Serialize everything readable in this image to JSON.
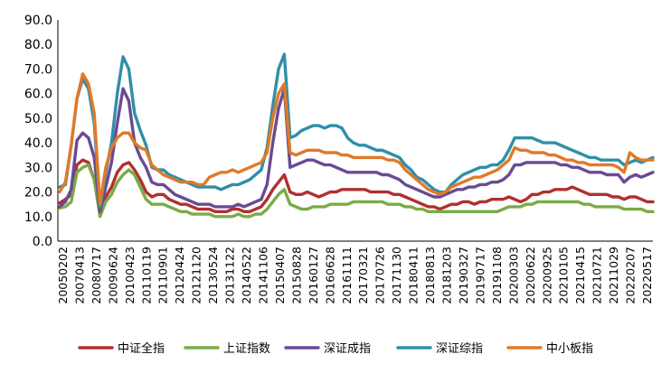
{
  "chart_data": {
    "type": "line",
    "title": "",
    "xlabel": "",
    "ylabel": "",
    "ylim": [
      0,
      90
    ],
    "yticks": [
      "0.0",
      "10.0",
      "20.0",
      "30.0",
      "40.0",
      "50.0",
      "60.0",
      "70.0",
      "80.0",
      "90.0"
    ],
    "xticks": [
      "20050202",
      "20070413",
      "20080717",
      "20090624",
      "20100423",
      "20110119",
      "20110901",
      "20120424",
      "20121120",
      "20130524",
      "20131122",
      "20140522",
      "20141106",
      "20150407",
      "20150828",
      "20160127",
      "20160628",
      "20161111",
      "20170321",
      "20170726",
      "20171130",
      "20180411",
      "20180813",
      "20181203",
      "20190327",
      "20190717",
      "20191108",
      "20200303",
      "20200622",
      "20200925",
      "20210105",
      "20210415",
      "20210721",
      "20211029",
      "20220207",
      "20220517"
    ],
    "grid": false,
    "legend": "bottom",
    "series": [
      {
        "name": "中证全指",
        "color": "#b03030",
        "values": [
          15.5,
          17,
          19,
          31,
          33,
          32,
          25,
          12,
          18,
          22,
          28,
          31,
          32,
          29,
          25,
          20,
          18,
          19,
          19,
          17,
          16,
          15,
          15,
          14,
          13,
          13,
          13,
          12,
          12,
          12,
          13,
          13,
          12,
          12,
          13,
          14,
          17,
          21,
          24,
          27,
          20,
          19,
          19,
          20,
          19,
          18,
          19,
          20,
          20,
          21,
          21,
          21,
          21,
          21,
          20,
          20,
          20,
          20,
          19,
          19,
          18,
          17,
          16,
          15,
          14,
          14,
          13,
          14,
          15,
          15,
          16,
          16,
          15,
          16,
          16,
          17,
          17,
          17,
          18,
          17,
          16,
          17,
          19,
          19,
          20,
          20,
          21,
          21,
          21,
          22,
          21,
          20,
          19,
          19,
          19,
          19,
          18,
          18,
          17,
          18,
          18,
          17,
          16,
          16
        ]
      },
      {
        "name": "上证指数",
        "color": "#7aab45",
        "values": [
          13.5,
          14,
          16,
          28,
          30,
          31,
          25,
          10,
          16,
          19,
          24,
          27,
          29,
          27,
          22,
          17,
          15,
          15,
          15,
          14,
          13,
          12,
          12,
          11,
          11,
          11,
          11,
          10,
          10,
          10,
          10,
          11,
          10,
          10,
          11,
          11,
          13,
          16,
          19,
          21,
          15,
          14,
          13,
          13,
          14,
          14,
          14,
          15,
          15,
          15,
          15,
          16,
          16,
          16,
          16,
          16,
          16,
          15,
          15,
          15,
          14,
          14,
          13,
          13,
          12,
          12,
          12,
          12,
          12,
          12,
          12,
          12,
          12,
          12,
          12,
          12,
          12,
          13,
          14,
          14,
          14,
          15,
          15,
          16,
          16,
          16,
          16,
          16,
          16,
          16,
          16,
          15,
          15,
          14,
          14,
          14,
          14,
          14,
          13,
          13,
          13,
          13,
          12,
          12
        ]
      },
      {
        "name": "深证成指",
        "color": "#6a4a93",
        "values": [
          14,
          16,
          21,
          41,
          44,
          42,
          34,
          12,
          22,
          32,
          48,
          62,
          57,
          40,
          34,
          30,
          24,
          23,
          23,
          21,
          19,
          18,
          17,
          16,
          15,
          15,
          15,
          14,
          14,
          14,
          14,
          15,
          14,
          15,
          16,
          17,
          23,
          40,
          54,
          62,
          30,
          31,
          32,
          33,
          33,
          32,
          31,
          31,
          30,
          29,
          28,
          28,
          28,
          28,
          28,
          28,
          27,
          27,
          26,
          25,
          23,
          22,
          21,
          20,
          19,
          18,
          18,
          19,
          20,
          21,
          21,
          22,
          22,
          23,
          23,
          24,
          24,
          25,
          27,
          31,
          31,
          32,
          32,
          32,
          32,
          32,
          32,
          31,
          31,
          30,
          30,
          29,
          28,
          28,
          28,
          27,
          27,
          27,
          24,
          26,
          27,
          26,
          27,
          28
        ]
      },
      {
        "name": "深证综指",
        "color": "#2f8fa8",
        "values": [
          22,
          23,
          39,
          58,
          66,
          62,
          48,
          14,
          28,
          40,
          60,
          75,
          70,
          52,
          45,
          39,
          30,
          29,
          29,
          27,
          26,
          25,
          24,
          23,
          22,
          22,
          22,
          22,
          21,
          22,
          23,
          23,
          24,
          25,
          27,
          29,
          38,
          55,
          70,
          76,
          42,
          43,
          45,
          46,
          47,
          47,
          46,
          47,
          47,
          46,
          42,
          40,
          39,
          39,
          38,
          37,
          37,
          36,
          35,
          34,
          31,
          29,
          26,
          25,
          23,
          21,
          20,
          20,
          23,
          25,
          27,
          28,
          29,
          30,
          30,
          31,
          31,
          33,
          37,
          42,
          42,
          42,
          42,
          41,
          40,
          40,
          40,
          39,
          38,
          37,
          36,
          35,
          34,
          34,
          33,
          33,
          33,
          33,
          31,
          32,
          33,
          32,
          33,
          34
        ]
      },
      {
        "name": "中小板指",
        "color": "#e07a28",
        "values": [
          20,
          24,
          39,
          58,
          68,
          64,
          52,
          15,
          30,
          38,
          42,
          44,
          44,
          40,
          38,
          37,
          31,
          29,
          27,
          26,
          25,
          24,
          24,
          24,
          23,
          23,
          26,
          27,
          28,
          28,
          29,
          28,
          29,
          30,
          31,
          32,
          36,
          50,
          60,
          64,
          36,
          35,
          36,
          37,
          37,
          37,
          36,
          36,
          36,
          35,
          35,
          34,
          34,
          34,
          34,
          34,
          34,
          33,
          33,
          32,
          29,
          27,
          25,
          23,
          21,
          20,
          19,
          20,
          22,
          23,
          24,
          25,
          26,
          26,
          27,
          28,
          29,
          31,
          33,
          38,
          37,
          37,
          36,
          36,
          36,
          35,
          35,
          34,
          33,
          33,
          32,
          32,
          31,
          31,
          31,
          31,
          31,
          30,
          28,
          36,
          34,
          33,
          33,
          33
        ]
      }
    ]
  }
}
